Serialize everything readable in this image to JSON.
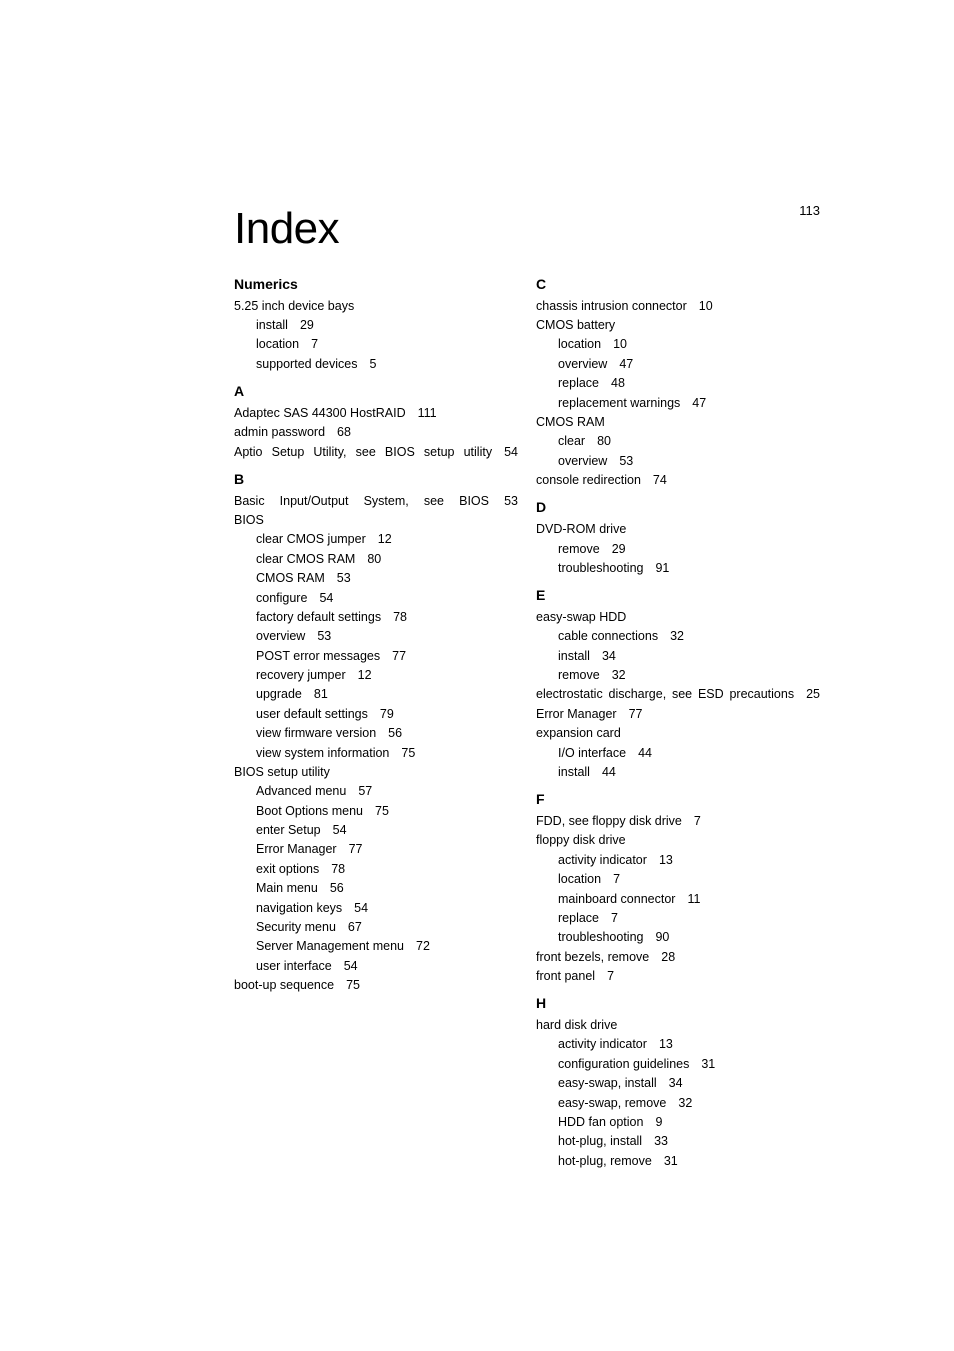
{
  "page_number": "113",
  "title": "Index",
  "columns": {
    "left": {
      "sections": [
        {
          "heading": "Numerics",
          "heading_class": "numerics-heading",
          "entries": [
            {
              "text": "5.25 inch device bays",
              "level": 0
            },
            {
              "text": "install",
              "page": "29",
              "level": 1
            },
            {
              "text": "location",
              "page": "7",
              "level": 1
            },
            {
              "text": "supported devices",
              "page": "5",
              "level": 1
            }
          ]
        },
        {
          "heading": "A",
          "entries": [
            {
              "text": "Adaptec SAS 44300 HostRAID",
              "page": "111",
              "level": 0
            },
            {
              "text": "admin password",
              "page": "68",
              "level": 0
            },
            {
              "text": "Aptio Setup Utility, see BIOS setup utility",
              "page": "54",
              "level": 0,
              "justified": true
            }
          ]
        },
        {
          "heading": "B",
          "entries": [
            {
              "text": "Basic Input/Output System, see BIOS 53",
              "level": 0,
              "justified": true
            },
            {
              "text": "BIOS",
              "level": 0
            },
            {
              "text": "clear CMOS jumper",
              "page": "12",
              "level": 1
            },
            {
              "text": "clear CMOS RAM",
              "page": "80",
              "level": 1
            },
            {
              "text": "CMOS RAM",
              "page": "53",
              "level": 1
            },
            {
              "text": "configure",
              "page": "54",
              "level": 1
            },
            {
              "text": "factory default settings",
              "page": "78",
              "level": 1
            },
            {
              "text": "overview",
              "page": "53",
              "level": 1
            },
            {
              "text": "POST error messages",
              "page": "77",
              "level": 1
            },
            {
              "text": "recovery jumper",
              "page": "12",
              "level": 1
            },
            {
              "text": "upgrade",
              "page": "81",
              "level": 1
            },
            {
              "text": "user default settings",
              "page": "79",
              "level": 1
            },
            {
              "text": "view firmware version",
              "page": "56",
              "level": 1
            },
            {
              "text": "view system information",
              "page": "75",
              "level": 1
            },
            {
              "text": "BIOS setup utility",
              "level": 0
            },
            {
              "text": "Advanced menu",
              "page": "57",
              "level": 1
            },
            {
              "text": "Boot Options menu",
              "page": "75",
              "level": 1
            },
            {
              "text": "enter Setup",
              "page": "54",
              "level": 1
            },
            {
              "text": "Error Manager",
              "page": "77",
              "level": 1
            },
            {
              "text": "exit options",
              "page": "78",
              "level": 1
            },
            {
              "text": "Main menu",
              "page": "56",
              "level": 1
            },
            {
              "text": "navigation keys",
              "page": "54",
              "level": 1
            },
            {
              "text": "Security menu",
              "page": "67",
              "level": 1
            },
            {
              "text": "Server Management menu",
              "page": "72",
              "level": 1
            },
            {
              "text": "user interface",
              "page": "54",
              "level": 1
            },
            {
              "text": "boot-up sequence",
              "page": "75",
              "level": 0
            }
          ]
        }
      ]
    },
    "right": {
      "sections": [
        {
          "heading": "C",
          "heading_class": "letter-heading first",
          "entries": [
            {
              "text": "chassis intrusion connector",
              "page": "10",
              "level": 0
            },
            {
              "text": "CMOS battery",
              "level": 0
            },
            {
              "text": "location",
              "page": "10",
              "level": 1
            },
            {
              "text": "overview",
              "page": "47",
              "level": 1
            },
            {
              "text": "replace",
              "page": "48",
              "level": 1
            },
            {
              "text": "replacement warnings",
              "page": "47",
              "level": 1
            },
            {
              "text": "CMOS RAM",
              "level": 0
            },
            {
              "text": "clear",
              "page": "80",
              "level": 1
            },
            {
              "text": "overview",
              "page": "53",
              "level": 1
            },
            {
              "text": "console redirection",
              "page": "74",
              "level": 0
            }
          ]
        },
        {
          "heading": "D",
          "entries": [
            {
              "text": "DVD-ROM drive",
              "level": 0
            },
            {
              "text": "remove",
              "page": "29",
              "level": 1
            },
            {
              "text": "troubleshooting",
              "page": "91",
              "level": 1
            }
          ]
        },
        {
          "heading": "E",
          "entries": [
            {
              "text": "easy-swap HDD",
              "level": 0
            },
            {
              "text": "cable connections",
              "page": "32",
              "level": 1
            },
            {
              "text": "install",
              "page": "34",
              "level": 1
            },
            {
              "text": "remove",
              "page": "32",
              "level": 1
            },
            {
              "text": "electrostatic discharge, see ESD precautions",
              "page": "25",
              "level": 0,
              "justified": true
            },
            {
              "text": "Error Manager",
              "page": "77",
              "level": 0
            },
            {
              "text": "expansion card",
              "level": 0
            },
            {
              "text": "I/O interface",
              "page": "44",
              "level": 1
            },
            {
              "text": "install",
              "page": "44",
              "level": 1
            }
          ]
        },
        {
          "heading": "F",
          "entries": [
            {
              "text": "FDD, see floppy disk drive",
              "page": "7",
              "level": 0
            },
            {
              "text": "floppy disk drive",
              "level": 0
            },
            {
              "text": "activity indicator",
              "page": "13",
              "level": 1
            },
            {
              "text": "location",
              "page": "7",
              "level": 1
            },
            {
              "text": "mainboard connector",
              "page": "11",
              "level": 1
            },
            {
              "text": "replace",
              "page": "7",
              "level": 1
            },
            {
              "text": "troubleshooting",
              "page": "90",
              "level": 1
            },
            {
              "text": "front bezels, remove",
              "page": "28",
              "level": 0
            },
            {
              "text": "front panel",
              "page": "7",
              "level": 0
            }
          ]
        },
        {
          "heading": "H",
          "entries": [
            {
              "text": "hard disk drive",
              "level": 0
            },
            {
              "text": "activity indicator",
              "page": "13",
              "level": 1
            },
            {
              "text": "configuration guidelines",
              "page": "31",
              "level": 1
            },
            {
              "text": "easy-swap, install",
              "page": "34",
              "level": 1
            },
            {
              "text": "easy-swap, remove",
              "page": "32",
              "level": 1
            },
            {
              "text": "HDD fan option",
              "page": "9",
              "level": 1
            },
            {
              "text": "hot-plug, install",
              "page": "33",
              "level": 1
            },
            {
              "text": "hot-plug, remove",
              "page": "31",
              "level": 1
            }
          ]
        }
      ]
    }
  }
}
